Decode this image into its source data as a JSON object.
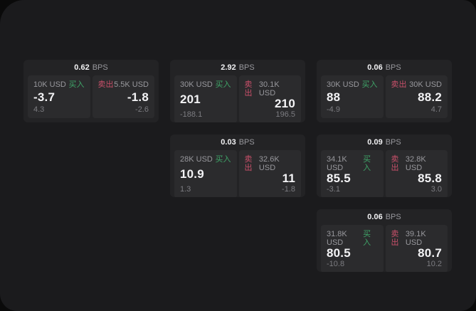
{
  "colors": {
    "window-bg": "#1b1b1d",
    "card-bg": "#232325",
    "cell-bg": "#2b2b2d",
    "label-gray": "#98989d",
    "dim-gray": "#7c7c81",
    "buy-green": "#3fa468",
    "sell-red": "#c9506a"
  },
  "labels": {
    "bps_unit": "BPS",
    "buy_side": "买入",
    "sell_side": "卖出"
  },
  "cards": [
    {
      "col": 1,
      "row": 1,
      "bps_value": "0.62",
      "bps_unit": "BPS",
      "buy": {
        "size": "10K USD",
        "side_label": "买入",
        "price": "-3.7",
        "delta": "4.3"
      },
      "sell": {
        "side_label": "卖出",
        "size": "5.5K USD",
        "price": "-1.8",
        "delta": "-2.6"
      }
    },
    {
      "col": 2,
      "row": 1,
      "bps_value": "2.92",
      "bps_unit": "BPS",
      "buy": {
        "size": "30K USD",
        "side_label": "买入",
        "price": "201",
        "delta": "-188.1"
      },
      "sell": {
        "side_label": "卖出",
        "size": "30.1K USD",
        "price": "210",
        "delta": "196.5"
      }
    },
    {
      "col": 2,
      "row": 2,
      "bps_value": "0.03",
      "bps_unit": "BPS",
      "buy": {
        "size": "28K USD",
        "side_label": "买入",
        "price": "10.9",
        "delta": "1.3"
      },
      "sell": {
        "side_label": "卖出",
        "size": "32.6K USD",
        "price": "11",
        "delta": "-1.8"
      }
    },
    {
      "col": 3,
      "row": 1,
      "bps_value": "0.06",
      "bps_unit": "BPS",
      "buy": {
        "size": "30K USD",
        "side_label": "买入",
        "price": "88",
        "delta": "-4.9"
      },
      "sell": {
        "side_label": "卖出",
        "size": "30K USD",
        "price": "88.2",
        "delta": "4.7"
      }
    },
    {
      "col": 3,
      "row": 2,
      "bps_value": "0.09",
      "bps_unit": "BPS",
      "buy": {
        "size": "34.1K USD",
        "side_label": "买入",
        "price": "85.5",
        "delta": "-3.1"
      },
      "sell": {
        "side_label": "卖出",
        "size": "32.8K USD",
        "price": "85.8",
        "delta": "3.0"
      }
    },
    {
      "col": 3,
      "row": 3,
      "bps_value": "0.06",
      "bps_unit": "BPS",
      "buy": {
        "size": "31.8K USD",
        "side_label": "买入",
        "price": "80.5",
        "delta": "-10.8"
      },
      "sell": {
        "side_label": "卖出",
        "size": "39.1K USD",
        "price": "80.7",
        "delta": "10.2"
      }
    }
  ]
}
